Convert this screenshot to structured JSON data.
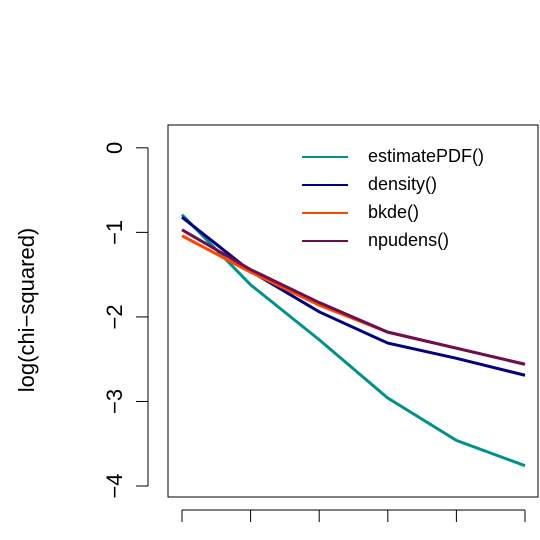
{
  "chart_data": {
    "type": "line",
    "y_label": "log(chi−squared)",
    "categories": [
      null,
      null,
      null,
      null,
      null,
      null
    ],
    "ylim": [
      0.27,
      -4.13
    ],
    "yticks": [
      {
        "value": -4,
        "label": "−4"
      },
      {
        "value": -3,
        "label": "−3"
      },
      {
        "value": -2,
        "label": "−2"
      },
      {
        "value": -1,
        "label": "−1"
      },
      0
    ],
    "legend": "top-right",
    "series": [
      {
        "name": "estimatePDF()",
        "color": "#00928a",
        "values": [
          -0.79,
          -1.62,
          -2.27,
          -2.96,
          -3.46,
          -3.76
        ]
      },
      {
        "name": "density()",
        "color": "#000080",
        "values": [
          -0.82,
          -1.46,
          -1.94,
          -2.31,
          -2.49,
          -2.69
        ]
      },
      {
        "name": "bkde()",
        "color": "#ff4500",
        "values": [
          -1.04,
          -1.47,
          -1.86,
          -2.18,
          -2.37,
          -2.56
        ]
      },
      {
        "name": "npudens()",
        "color": "#6b0f4f",
        "values": [
          -0.97,
          -1.44,
          -1.83,
          -2.18,
          -2.37,
          -2.56
        ]
      }
    ]
  }
}
